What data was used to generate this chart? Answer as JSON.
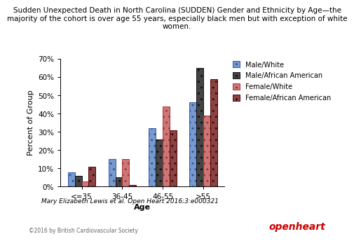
{
  "title_line1": "Sudden Unexpected Death in North Carolina (SUDDEN) Gender and Ethnicity by Age—the",
  "title_line2": "majority of the cohort is over age 55 years, especially black men but with exception of white",
  "title_line3": "women.",
  "xlabel": "Age",
  "ylabel": "Percent of Group",
  "categories": [
    "<=35",
    "36-45",
    "46-55",
    ">55"
  ],
  "series": {
    "Male/White": [
      8,
      15,
      32,
      46
    ],
    "Male/African American": [
      6,
      5,
      26,
      65
    ],
    "Female/White": [
      3,
      15,
      44,
      39
    ],
    "Female/African American": [
      11,
      1,
      31,
      59
    ]
  },
  "colors": {
    "Male/White": "#7799cc",
    "Male/African American": "#444444",
    "Female/White": "#cc7777",
    "Female/African American": "#884444"
  },
  "hatches": {
    "Male/White": "..",
    "Male/African American": "..",
    "Female/White": "..",
    "Female/African American": ".."
  },
  "edgecolors": {
    "Male/White": "#3355aa",
    "Male/African American": "#111111",
    "Female/White": "#aa3333",
    "Female/African American": "#550000"
  },
  "ylim": [
    0,
    70
  ],
  "yticks": [
    0,
    10,
    20,
    30,
    40,
    50,
    60,
    70
  ],
  "ytick_labels": [
    "0%",
    "10%",
    "20%",
    "30%",
    "40%",
    "50%",
    "60%",
    "70%"
  ],
  "citation": "Mary Elizabeth Lewis et al. Open Heart 2016;3:e000321",
  "copyright": "©2016 by British Cardiovascular Society",
  "openheart_color": "#cc0000",
  "background_color": "#ffffff",
  "title_fontsize": 7.5,
  "axis_label_fontsize": 8,
  "tick_fontsize": 7.5,
  "legend_fontsize": 7,
  "citation_fontsize": 6.5,
  "copyright_fontsize": 5.5
}
